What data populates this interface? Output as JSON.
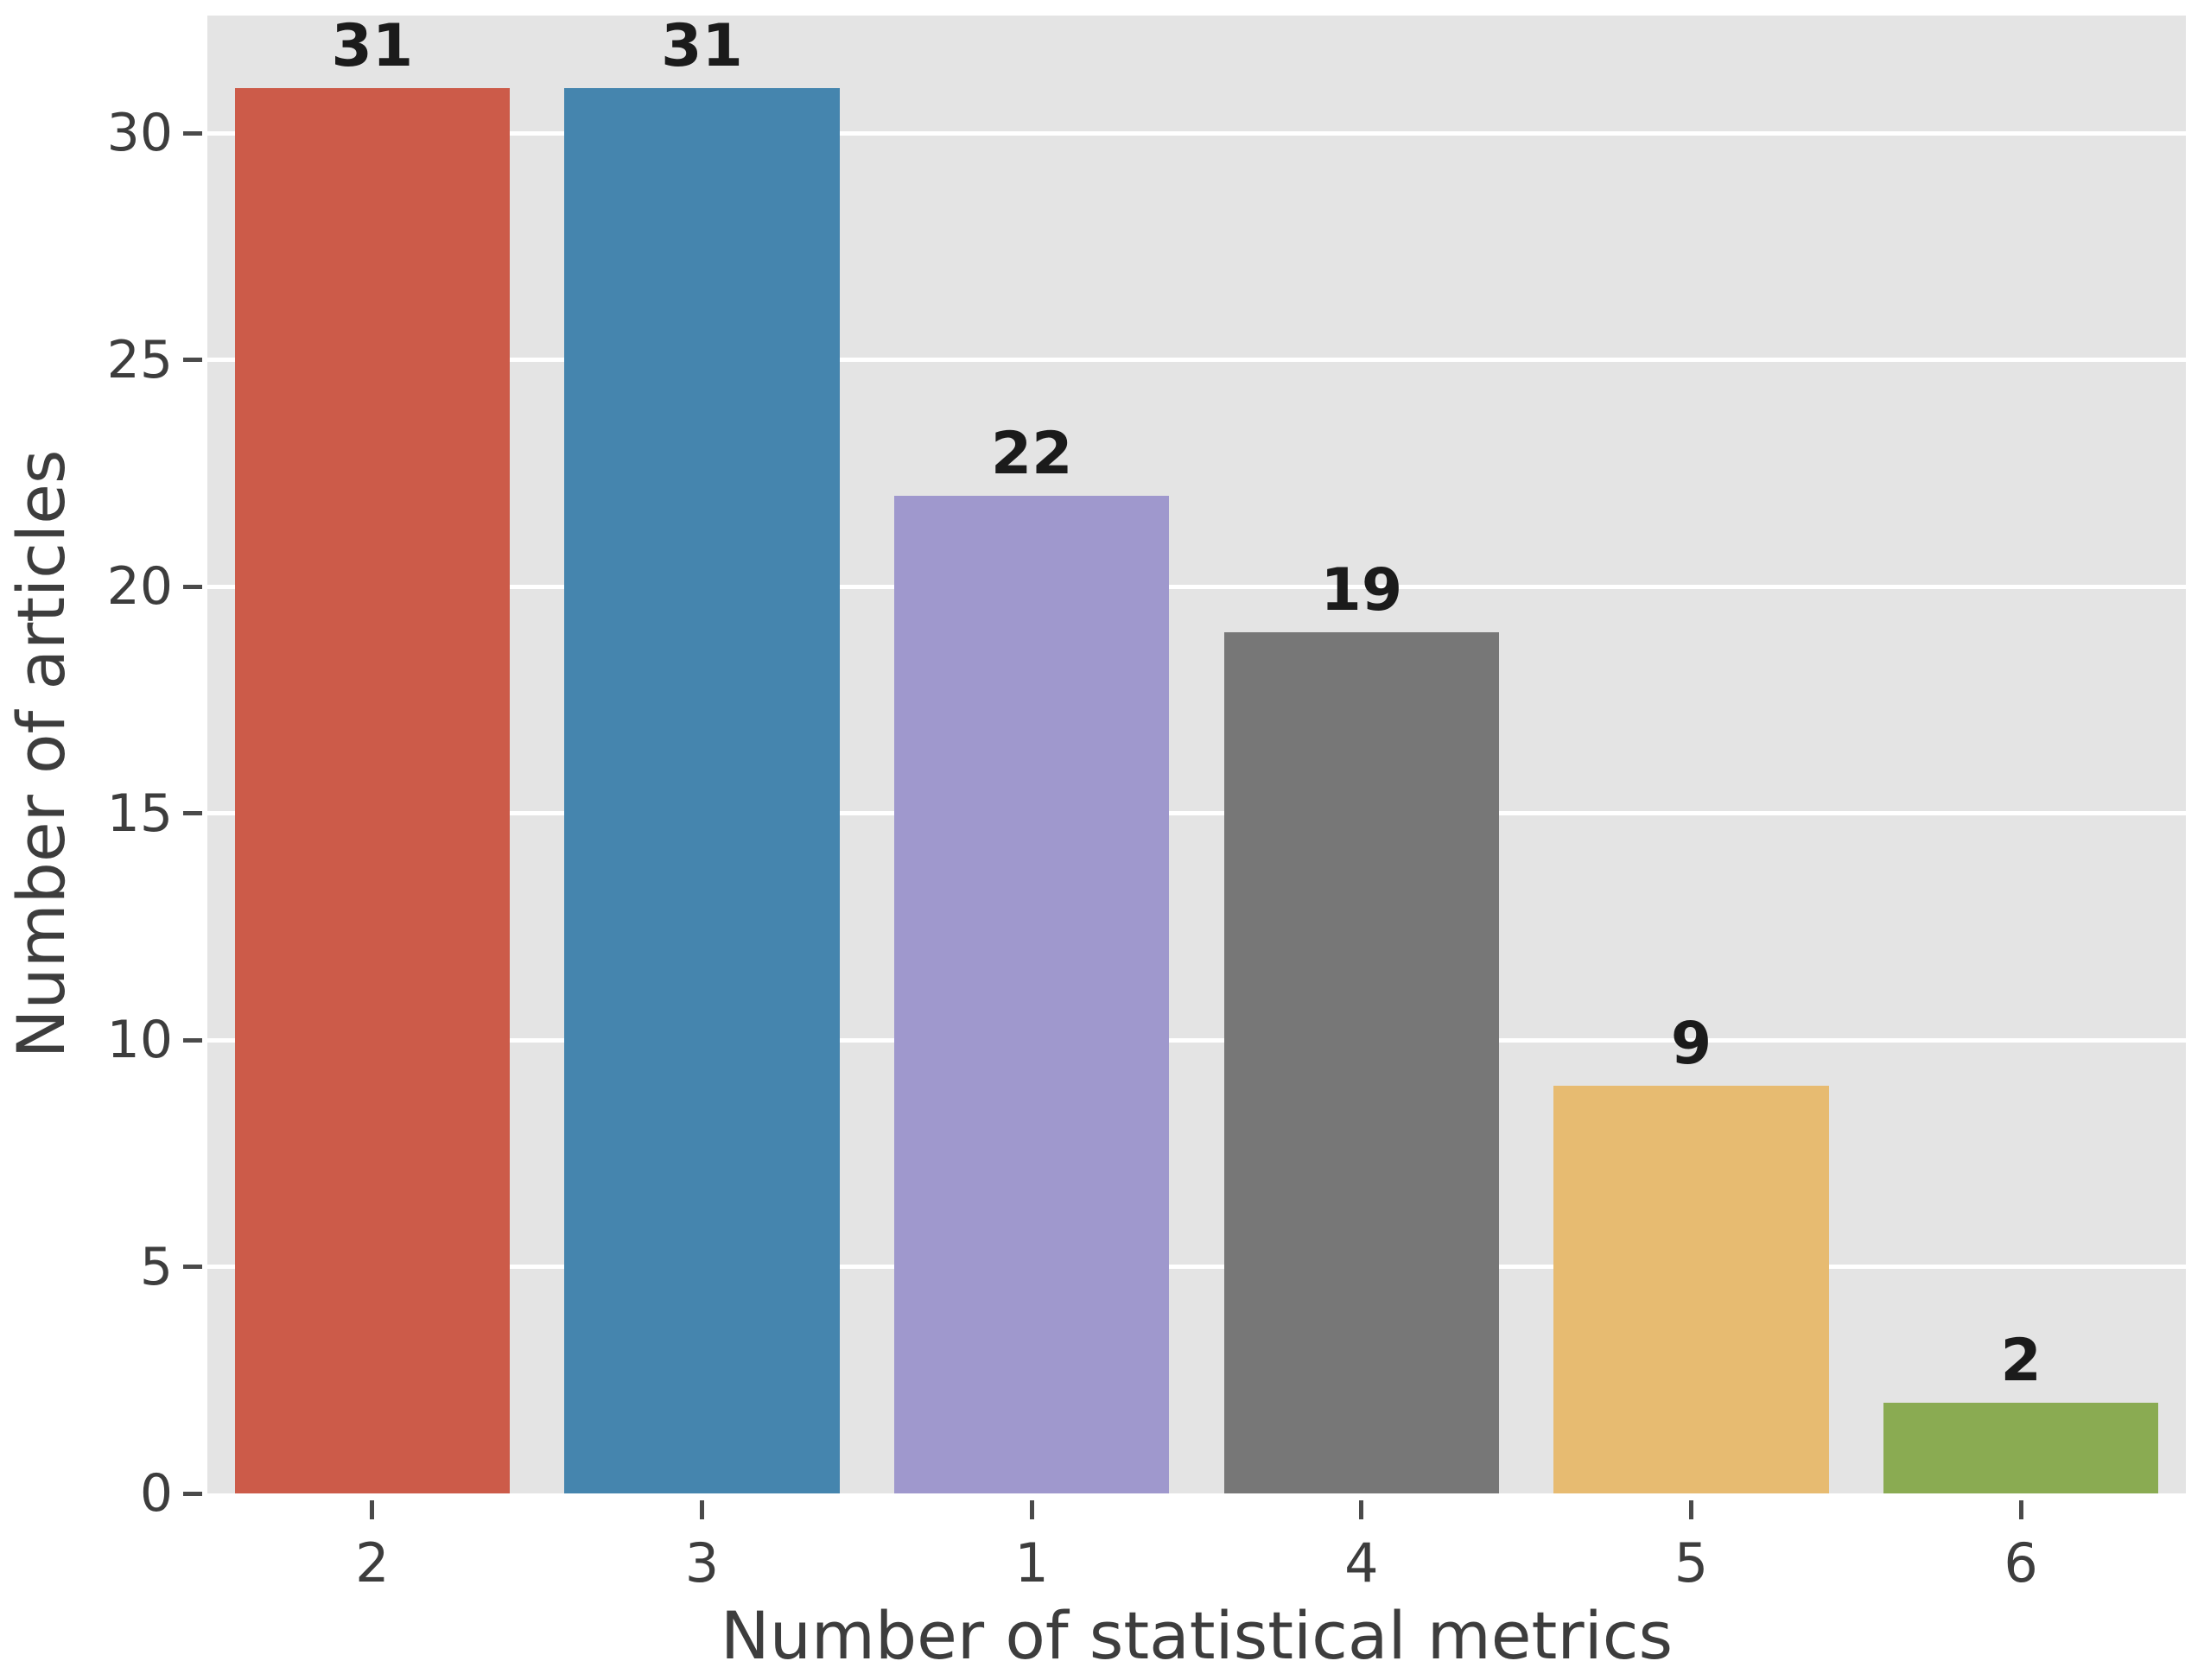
{
  "chart_data": {
    "type": "bar",
    "title": "",
    "xlabel": "Number of statistical metrics",
    "ylabel": "Number of articles",
    "categories": [
      "2",
      "3",
      "1",
      "4",
      "5",
      "6"
    ],
    "values": [
      31,
      31,
      22,
      19,
      9,
      2
    ],
    "value_labels": [
      "31",
      "31",
      "22",
      "19",
      "9",
      "2"
    ],
    "bar_colors": [
      "#cc5b49",
      "#4585ae",
      "#9f98cd",
      "#777777",
      "#e7bb71",
      "#8aab52"
    ],
    "yticks": [
      0,
      5,
      10,
      15,
      20,
      25,
      30
    ],
    "ylim": [
      0,
      32.6
    ],
    "grid": "horizontal-white-on-gray",
    "legend": "none",
    "plot_background": "#e4e4e4",
    "gridline_color": "#ffffff",
    "tick_color": "#3d3d3d",
    "value_label_color": "#1b1b1b"
  }
}
